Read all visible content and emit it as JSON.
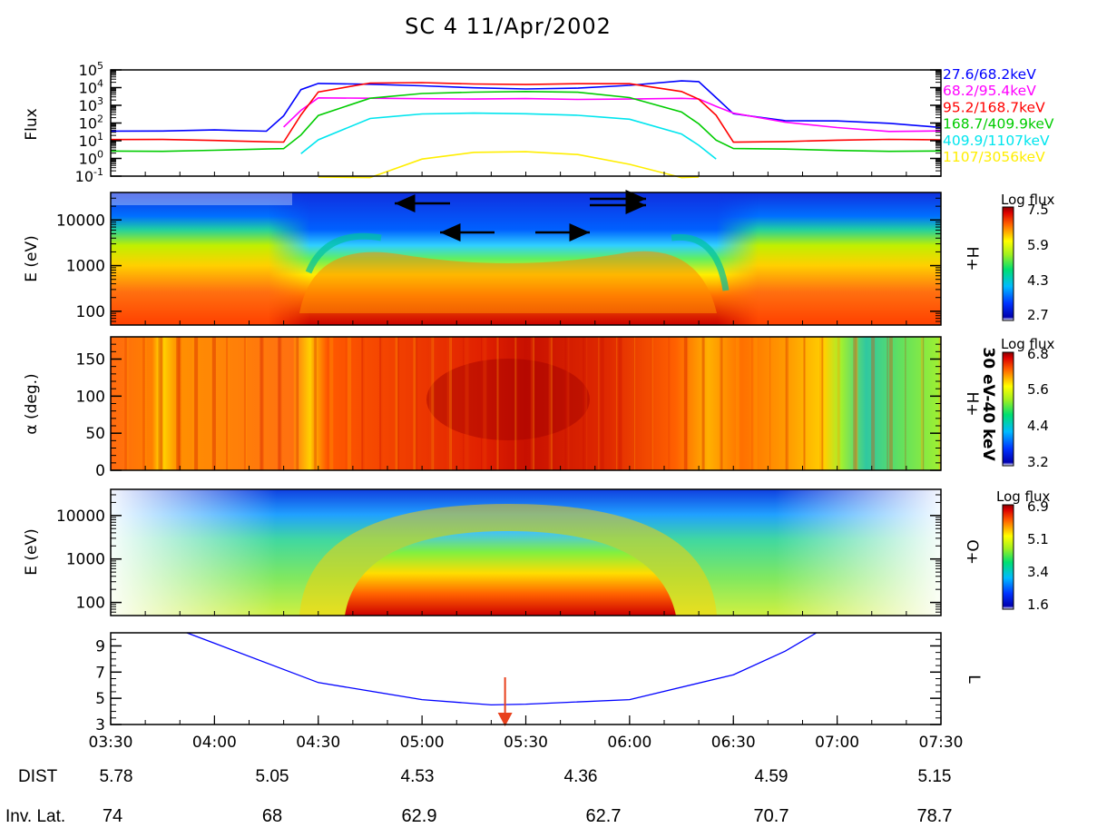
{
  "title": "SC 4   11/Apr/2002",
  "colors": {
    "e1": "#0000ff",
    "e2": "#ff00ff",
    "e3": "#ff0000",
    "e4": "#00cc00",
    "e5": "#00e5ee",
    "e6": "#ffee00",
    "l_shell": "#0000ff",
    "arrow_red": "#e8401c"
  },
  "chart_data": [
    {
      "type": "line",
      "panel": "energetic-flux",
      "ylabel": "Flux",
      "yscale": "log",
      "ylim": [
        0.1,
        100000
      ],
      "yticklabels": [
        "10^-1",
        "10^0",
        "10^1",
        "10^2",
        "10^3",
        "10^4",
        "10^5"
      ],
      "x": [
        "03:30",
        "03:45",
        "04:00",
        "04:15",
        "04:20",
        "04:25",
        "04:30",
        "04:45",
        "05:00",
        "05:15",
        "05:30",
        "05:45",
        "06:00",
        "06:15",
        "06:20",
        "06:25",
        "06:30",
        "06:45",
        "07:00",
        "07:15",
        "07:30"
      ],
      "series": [
        {
          "name": "27.6/68.2keV",
          "color": "#0000ff",
          "values": [
            30,
            30,
            40,
            40,
            300,
            8000,
            15000,
            13000,
            12000,
            11000,
            10000,
            10000,
            12000,
            20000,
            20000,
            3000,
            400,
            150,
            120,
            80,
            50
          ]
        },
        {
          "name": "68.2/95.4keV",
          "color": "#ff00ff",
          "values": [
            null,
            null,
            null,
            null,
            50,
            500,
            3000,
            3000,
            2500,
            2000,
            2000,
            2000,
            2500,
            3000,
            2500,
            800,
            300,
            100,
            60,
            40,
            40
          ]
        },
        {
          "name": "95.2/168.7keV",
          "color": "#ff0000",
          "values": [
            10,
            10,
            10,
            10,
            10,
            300,
            5000,
            15000,
            18000,
            18000,
            18000,
            18000,
            15000,
            5000,
            2000,
            300,
            10,
            10,
            10,
            10,
            10
          ]
        },
        {
          "name": "168.7/409.9keV",
          "color": "#00cc00",
          "values": [
            3,
            3,
            3,
            3,
            3,
            20,
            300,
            3000,
            5000,
            5000,
            5000,
            5000,
            3000,
            500,
            100,
            10,
            3,
            3,
            3,
            3,
            3
          ]
        },
        {
          "name": "409.9/1107keV",
          "color": "#00e5ee",
          "values": [
            null,
            null,
            null,
            null,
            null,
            2,
            10,
            150,
            300,
            400,
            400,
            300,
            150,
            20,
            5,
            1,
            null,
            null,
            null,
            null,
            null
          ]
        },
        {
          "name": "1107/3056keV",
          "color": "#ffee00",
          "values": [
            null,
            null,
            null,
            null,
            null,
            null,
            0.1,
            0.1,
            1,
            2,
            2,
            1.5,
            0.5,
            0.1,
            0.1,
            null,
            null,
            null,
            null,
            null,
            null
          ]
        }
      ]
    },
    {
      "type": "heatmap",
      "panel": "H+ energy spectrogram",
      "species": "H+",
      "ylabel": "E  (eV)",
      "yscale": "log",
      "ylim": [
        50,
        40000
      ],
      "yticks": [
        "100",
        "1000",
        "10000"
      ],
      "colorbar_title": "Log flux",
      "colorbar_ticks": [
        "7.5",
        "5.9",
        "4.3",
        "2.7"
      ]
    },
    {
      "type": "heatmap",
      "panel": "H+ pitch angle",
      "species": "H+",
      "ylabel": "α  (deg.)",
      "ylim": [
        0,
        180
      ],
      "yticks": [
        "0",
        "50",
        "100",
        "150"
      ],
      "energy_range": "30 eV-40 keV",
      "colorbar_title": "Log flux",
      "colorbar_ticks": [
        "6.8",
        "5.6",
        "4.4",
        "3.2"
      ]
    },
    {
      "type": "heatmap",
      "panel": "O+ energy spectrogram",
      "species": "O+",
      "ylabel": "E  (eV)",
      "yscale": "log",
      "ylim": [
        50,
        40000
      ],
      "yticks": [
        "100",
        "1000",
        "10000"
      ],
      "colorbar_title": "Log flux",
      "colorbar_ticks": [
        "6.9",
        "5.1",
        "3.4",
        "1.6"
      ]
    },
    {
      "type": "line",
      "panel": "L-shell",
      "ylabel": "",
      "legend": "L",
      "ylim": [
        3,
        10
      ],
      "yticks": [
        "3",
        "5",
        "7",
        "9"
      ],
      "x": [
        "03:52",
        "04:00",
        "04:30",
        "05:00",
        "05:20",
        "05:30",
        "06:00",
        "06:30",
        "06:45",
        "06:54"
      ],
      "values": [
        10,
        9.2,
        6.2,
        4.9,
        4.5,
        4.55,
        4.9,
        6.8,
        8.6,
        10
      ],
      "annotation": {
        "type": "arrow",
        "x": "05:24",
        "direction": "down"
      }
    }
  ],
  "xaxis": {
    "ticks": [
      "03:30",
      "04:00",
      "04:30",
      "05:00",
      "05:30",
      "06:00",
      "06:30",
      "07:00",
      "07:30"
    ]
  },
  "dist": {
    "label": "DIST",
    "values": [
      "5.78",
      "5.05",
      "4.53",
      "4.36",
      "4.59",
      "5.15"
    ]
  },
  "invlat": {
    "label": "Inv. Lat.",
    "values": [
      "74",
      "68",
      "62.9",
      "62.7",
      "70.7",
      "78.7"
    ]
  }
}
